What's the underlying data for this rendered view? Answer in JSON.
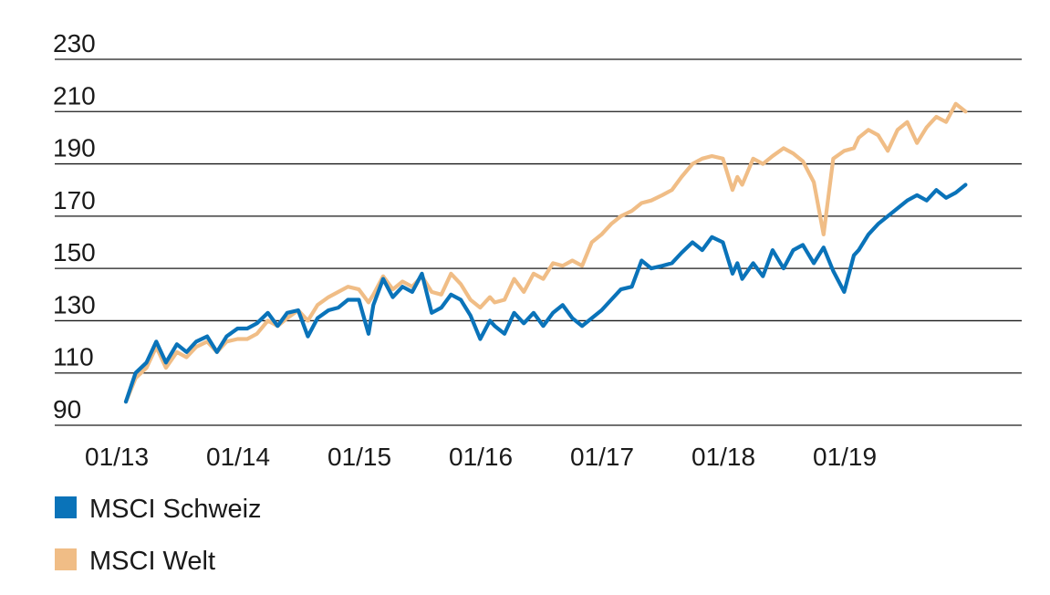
{
  "chart_data": {
    "type": "line",
    "title": "",
    "xlabel": "",
    "ylabel": "",
    "ylim": [
      90,
      230
    ],
    "y_ticks": [
      "90",
      "110",
      "130",
      "150",
      "170",
      "190",
      "210",
      "230"
    ],
    "x_ticks": [
      "01/13",
      "01/14",
      "01/15",
      "01/16",
      "01/17",
      "01/18",
      "01/19"
    ],
    "grid": "horizontal",
    "legend_position": "bottom-left",
    "series": [
      {
        "name": "MSCI Schweiz",
        "color": "#0a73b9",
        "x": [
          2013.0,
          2013.08,
          2013.17,
          2013.25,
          2013.33,
          2013.42,
          2013.5,
          2013.58,
          2013.67,
          2013.75,
          2013.83,
          2013.92,
          2014.0,
          2014.08,
          2014.17,
          2014.25,
          2014.33,
          2014.42,
          2014.5,
          2014.58,
          2014.67,
          2014.75,
          2014.83,
          2014.92,
          2015.0,
          2015.04,
          2015.12,
          2015.2,
          2015.28,
          2015.36,
          2015.44,
          2015.52,
          2015.6,
          2015.68,
          2015.76,
          2015.84,
          2015.92,
          2016.0,
          2016.04,
          2016.12,
          2016.2,
          2016.28,
          2016.36,
          2016.44,
          2016.52,
          2016.6,
          2016.68,
          2016.76,
          2016.84,
          2016.92,
          2017.0,
          2017.08,
          2017.17,
          2017.25,
          2017.33,
          2017.42,
          2017.5,
          2017.58,
          2017.67,
          2017.75,
          2017.83,
          2017.92,
          2018.0,
          2018.04,
          2018.08,
          2018.17,
          2018.25,
          2018.33,
          2018.42,
          2018.5,
          2018.58,
          2018.67,
          2018.75,
          2018.83,
          2018.92,
          2019.0,
          2019.04,
          2019.12,
          2019.2,
          2019.28,
          2019.36,
          2019.44,
          2019.52,
          2019.6,
          2019.68,
          2019.76,
          2019.84,
          2019.92
        ],
        "values": [
          99,
          110,
          114,
          122,
          114,
          121,
          118,
          122,
          124,
          118,
          124,
          127,
          127,
          129,
          133,
          128,
          133,
          134,
          124,
          131,
          134,
          135,
          138,
          138,
          125,
          136,
          146,
          139,
          143,
          141,
          148,
          133,
          135,
          140,
          138,
          132,
          123,
          130,
          128,
          125,
          133,
          129,
          133,
          128,
          133,
          136,
          131,
          128,
          131,
          134,
          138,
          142,
          143,
          153,
          150,
          151,
          152,
          156,
          160,
          157,
          162,
          160,
          148,
          152,
          146,
          152,
          147,
          157,
          150,
          157,
          159,
          152,
          158,
          149,
          141,
          155,
          157,
          163,
          167,
          170,
          173,
          176,
          178,
          176,
          180,
          177,
          179,
          182
        ]
      },
      {
        "name": "MSCI Welt",
        "color": "#f0bd86",
        "x": [
          2013.0,
          2013.08,
          2013.17,
          2013.25,
          2013.33,
          2013.42,
          2013.5,
          2013.58,
          2013.67,
          2013.75,
          2013.83,
          2013.92,
          2014.0,
          2014.08,
          2014.17,
          2014.25,
          2014.33,
          2014.42,
          2014.5,
          2014.58,
          2014.67,
          2014.75,
          2014.83,
          2014.92,
          2015.0,
          2015.04,
          2015.12,
          2015.2,
          2015.28,
          2015.36,
          2015.44,
          2015.52,
          2015.6,
          2015.68,
          2015.76,
          2015.84,
          2015.92,
          2016.0,
          2016.04,
          2016.12,
          2016.2,
          2016.28,
          2016.36,
          2016.44,
          2016.52,
          2016.6,
          2016.68,
          2016.76,
          2016.84,
          2016.92,
          2017.0,
          2017.08,
          2017.17,
          2017.25,
          2017.33,
          2017.42,
          2017.5,
          2017.58,
          2017.67,
          2017.75,
          2017.83,
          2017.92,
          2018.0,
          2018.04,
          2018.08,
          2018.17,
          2018.25,
          2018.33,
          2018.42,
          2018.5,
          2018.58,
          2018.67,
          2018.75,
          2018.83,
          2018.92,
          2019.0,
          2019.04,
          2019.12,
          2019.2,
          2019.28,
          2019.36,
          2019.44,
          2019.52,
          2019.6,
          2019.68,
          2019.76,
          2019.84,
          2019.92
        ],
        "values": [
          99,
          108,
          112,
          120,
          112,
          118,
          116,
          120,
          122,
          118,
          122,
          123,
          123,
          125,
          130,
          128,
          131,
          134,
          130,
          136,
          139,
          141,
          143,
          142,
          137,
          140,
          147,
          142,
          145,
          143,
          147,
          141,
          140,
          148,
          144,
          138,
          135,
          139,
          137,
          138,
          146,
          141,
          148,
          146,
          152,
          151,
          153,
          151,
          160,
          163,
          167,
          170,
          172,
          175,
          176,
          178,
          180,
          185,
          190,
          192,
          193,
          192,
          180,
          185,
          182,
          192,
          190,
          193,
          196,
          194,
          191,
          183,
          163,
          192,
          195,
          196,
          200,
          203,
          201,
          195,
          203,
          206,
          198,
          204,
          208,
          206,
          213,
          210
        ]
      }
    ]
  }
}
